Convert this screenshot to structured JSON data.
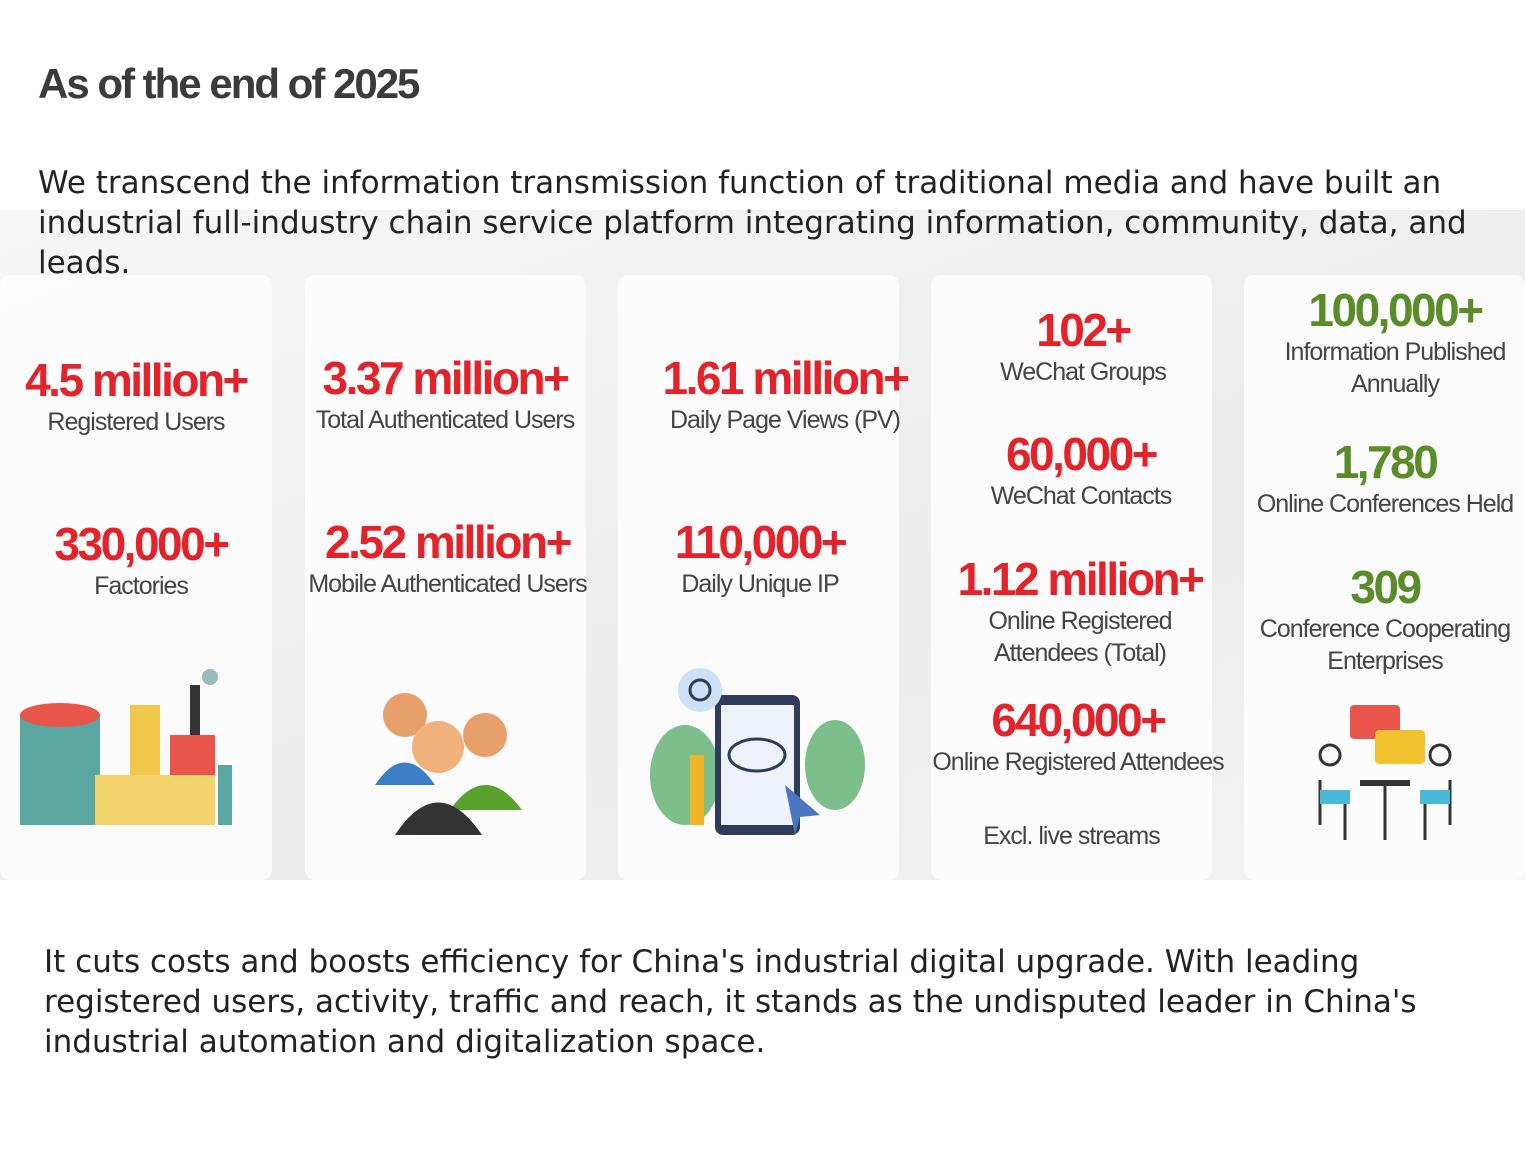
{
  "header": {
    "title": "As of the end of 2025"
  },
  "intro": "We transcend the information transmission function of traditional media and have built an industrial full-industry chain service platform integrating information, community, data, and leads.",
  "columns": [
    {
      "stats": [
        {
          "value": "4.5 million+",
          "label": "Registered Users"
        },
        {
          "value": "330,000+",
          "label": "Factories"
        }
      ]
    },
    {
      "stats": [
        {
          "value": "3.37 million+",
          "label": "Total Authenticated Users"
        },
        {
          "value": "2.52 million+",
          "label": "Mobile Authenticated Users"
        }
      ]
    },
    {
      "stats": [
        {
          "value": "1.61 million+",
          "label": "Daily Page Views (PV)"
        },
        {
          "value": "110,000+",
          "label": "Daily Unique IP"
        }
      ]
    },
    {
      "stats": [
        {
          "value": "102+",
          "label": "WeChat Groups"
        },
        {
          "value": "60,000+",
          "label": "WeChat Contacts"
        },
        {
          "value": "1.12 million+",
          "label": "Online Registered Attendees (Total)"
        },
        {
          "value": "640,000+",
          "label": "Online Registered Attendees"
        }
      ],
      "note": "Excl. live streams"
    },
    {
      "stats": [
        {
          "value": "100,000+",
          "label": "Information Published Annually"
        },
        {
          "value": "1,780",
          "label": "Online Conferences Held"
        },
        {
          "value": "309",
          "label": "Conference Cooperating Enterprises"
        }
      ]
    }
  ],
  "outro": "It cuts costs and boosts efficiency for China's industrial digital upgrade. With leading registered users, activity, traffic and reach, it stands as the undisputed leader in China's industrial automation and digitalization space."
}
